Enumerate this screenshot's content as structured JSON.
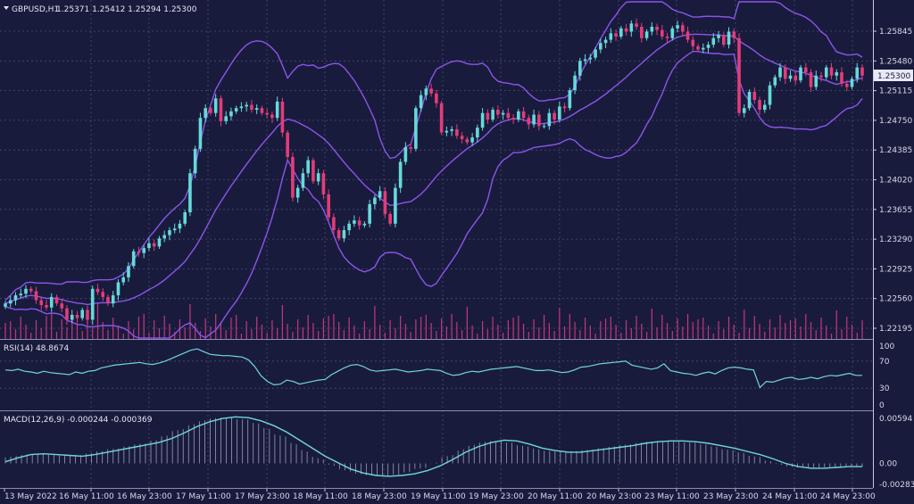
{
  "header": {
    "symbol": "GBPUSD,H1",
    "ohlc": "1.25371 1.25412 1.25294 1.25300",
    "rsi_label": "RSI(14) 48.8674",
    "macd_label": "MACD(12,26,9) -0.000244 -0.000369"
  },
  "colors": {
    "background": "#191b3d",
    "bull_candle": "#66d9d9",
    "bear_candle": "#e23d79",
    "bollinger": "#8a56e8",
    "volume": "#c8357a",
    "rsi_line": "#6fd6dc",
    "macd_line": "#6fd6dc",
    "macd_hist": "#c8c9dc"
  },
  "chart_data": [
    {
      "type": "candlestick",
      "title": "GBPUSD,H1",
      "ylim": [
        1.2195,
        1.2621
      ],
      "y_ticks": [
        "1.25845",
        "1.25480",
        "1.25115",
        "1.24750",
        "1.24385",
        "1.24020",
        "1.23655",
        "1.23290",
        "1.22925",
        "1.22560",
        "1.22195"
      ],
      "current_price": "1.25300",
      "x_ticks": [
        "13 May 2022",
        "16 May 11:00",
        "16 May 23:00",
        "17 May 11:00",
        "17 May 23:00",
        "18 May 11:00",
        "18 May 23:00",
        "19 May 11:00",
        "19 May 23:00",
        "20 May 11:00",
        "20 May 23:00",
        "23 May 11:00",
        "23 May 23:00",
        "24 May 11:00",
        "24 May 23:00"
      ],
      "close": [
        1.225,
        1.2254,
        1.226,
        1.2262,
        1.2268,
        1.2265,
        1.2254,
        1.2248,
        1.2245,
        1.2258,
        1.225,
        1.2244,
        1.223,
        1.2236,
        1.2232,
        1.2242,
        1.223,
        1.2268,
        1.2264,
        1.2258,
        1.225,
        1.226,
        1.2276,
        1.2282,
        1.2296,
        1.2314,
        1.2312,
        1.2318,
        1.2324,
        1.232,
        1.233,
        1.2334,
        1.234,
        1.2342,
        1.2348,
        1.2362,
        1.241,
        1.244,
        1.2478,
        1.249,
        1.2484,
        1.2502,
        1.2474,
        1.248,
        1.2486,
        1.249,
        1.2492,
        1.2494,
        1.2488,
        1.249,
        1.2484,
        1.2482,
        1.2478,
        1.2498,
        1.246,
        1.243,
        1.238,
        1.2392,
        1.241,
        1.2426,
        1.24,
        1.241,
        1.2384,
        1.2356,
        1.234,
        1.233,
        1.234,
        1.2348,
        1.2352,
        1.2346,
        1.2348,
        1.2372,
        1.238,
        1.2388,
        1.236,
        1.2348,
        1.2392,
        1.2424,
        1.2442,
        1.244,
        1.249,
        1.2506,
        1.2514,
        1.2508,
        1.2496,
        1.246,
        1.2462,
        1.2464,
        1.2456,
        1.2452,
        1.2448,
        1.2454,
        1.2466,
        1.2484,
        1.2476,
        1.2488,
        1.2482,
        1.2484,
        1.2478,
        1.2476,
        1.2486,
        1.2478,
        1.247,
        1.2482,
        1.2468,
        1.2468,
        1.2484,
        1.2476,
        1.2492,
        1.249,
        1.2512,
        1.253,
        1.2548,
        1.255,
        1.2552,
        1.2562,
        1.257,
        1.2574,
        1.2582,
        1.2578,
        1.2588,
        1.2584,
        1.2594,
        1.259,
        1.2576,
        1.2584,
        1.259,
        1.2586,
        1.2578,
        1.2576,
        1.2588,
        1.2592,
        1.2584,
        1.2574,
        1.2566,
        1.2562,
        1.2564,
        1.2568,
        1.2576,
        1.258,
        1.2568,
        1.2584,
        1.2576,
        1.2484,
        1.249,
        1.251,
        1.25,
        1.2488,
        1.2494,
        1.2518,
        1.2528,
        1.254,
        1.2526,
        1.253,
        1.2524,
        1.254,
        1.2534,
        1.2516,
        1.253,
        1.2528,
        1.254,
        1.253,
        1.2534,
        1.252,
        1.2516,
        1.2526,
        1.254,
        1.253
      ]
    },
    {
      "type": "line",
      "title": "RSI(14)",
      "ylim": [
        0,
        100
      ],
      "y_ticks": [
        "100",
        "70",
        "30",
        "0"
      ],
      "values": [
        57,
        56,
        58,
        55,
        54,
        52,
        55,
        53,
        52,
        51,
        50,
        54,
        52,
        55,
        56,
        60,
        62,
        64,
        65,
        66,
        67,
        68,
        66,
        65,
        67,
        70,
        74,
        78,
        82,
        86,
        88,
        84,
        80,
        79,
        78,
        78,
        77,
        76,
        72,
        62,
        48,
        40,
        35,
        36,
        42,
        40,
        36,
        38,
        40,
        42,
        43,
        50,
        55,
        60,
        64,
        65,
        62,
        57,
        55,
        56,
        57,
        58,
        56,
        54,
        55,
        56,
        58,
        57,
        56,
        52,
        49,
        50,
        53,
        55,
        54,
        56,
        58,
        59,
        60,
        61,
        62,
        60,
        58,
        56,
        56,
        57,
        55,
        53,
        54,
        57,
        61,
        62,
        64,
        66,
        67,
        68,
        69,
        70,
        64,
        62,
        60,
        58,
        60,
        66,
        56,
        54,
        52,
        51,
        49,
        52,
        54,
        51,
        56,
        60,
        61,
        60,
        58,
        57,
        31,
        40,
        39,
        42,
        45,
        46,
        43,
        44,
        46,
        44,
        47,
        49,
        48,
        50,
        52,
        49,
        48.9
      ]
    },
    {
      "type": "line",
      "title": "MACD(12,26,9)",
      "ylim": [
        -0.002836,
        0.00594
      ],
      "y_ticks": [
        "0.00594",
        "0.00",
        "-0.002836"
      ],
      "signal": [
        0.0002,
        0.0007,
        0.0011,
        0.0012,
        0.0011,
        0.001,
        0.0009,
        0.0011,
        0.0014,
        0.0017,
        0.002,
        0.0023,
        0.0026,
        0.0031,
        0.0038,
        0.0046,
        0.0052,
        0.0056,
        0.0058,
        0.0057,
        0.0053,
        0.0047,
        0.0039,
        0.0029,
        0.0019,
        0.0009,
        0.0001,
        -0.0007,
        -0.0012,
        -0.0015,
        -0.0016,
        -0.0015,
        -0.0013,
        -0.0009,
        -0.0003,
        0.0005,
        0.0014,
        0.0021,
        0.0026,
        0.0029,
        0.0028,
        0.0024,
        0.0019,
        0.0016,
        0.0014,
        0.0014,
        0.0016,
        0.0018,
        0.002,
        0.0022,
        0.0025,
        0.0027,
        0.0028,
        0.0028,
        0.0027,
        0.0025,
        0.0022,
        0.0019,
        0.0015,
        0.0011,
        0.0006,
        0.0,
        -0.0004,
        -0.0006,
        -0.0006,
        -0.0005,
        -0.0004,
        -0.0004
      ]
    }
  ]
}
